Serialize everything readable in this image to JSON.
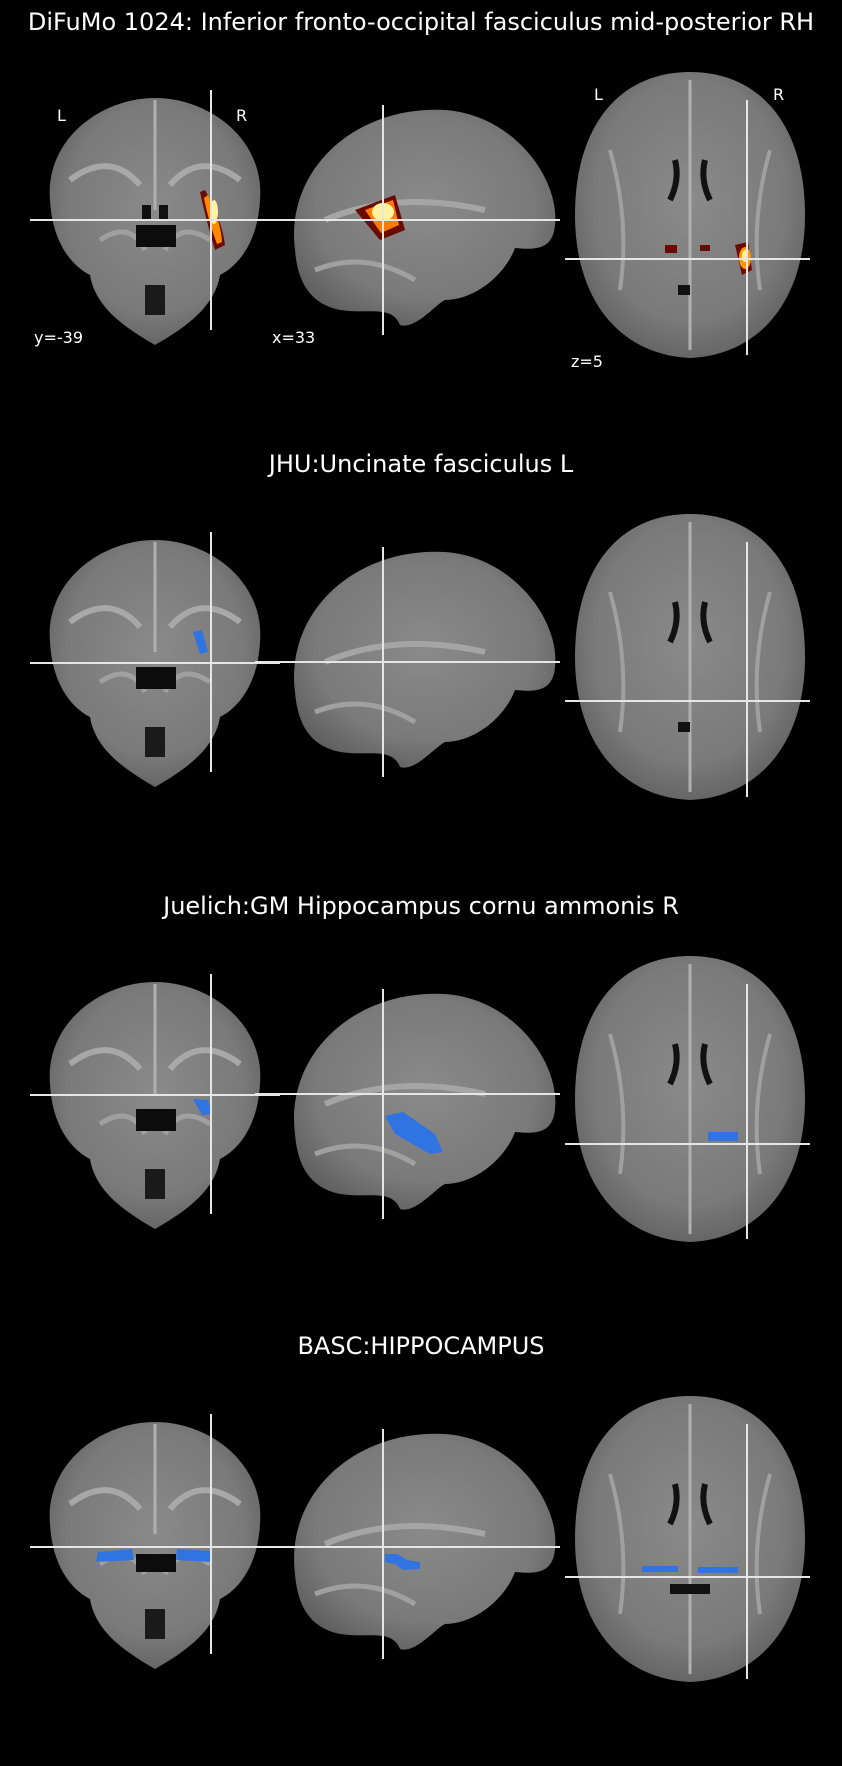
{
  "panels": [
    {
      "title": "DiFuMo 1024: Inferior fronto-occipital fasciculus mid-posterior RH",
      "overlay": "hot",
      "orientation": {
        "left": "L",
        "right": "R"
      },
      "coords": {
        "coronal": "y=-39",
        "sagittal": "x=33",
        "axial": "z=5"
      }
    },
    {
      "title": "JHU:Uncinate fasciculus L",
      "overlay": "blue"
    },
    {
      "title": "Juelich:GM Hippocampus cornu ammonis R",
      "overlay": "blue"
    },
    {
      "title": "BASC:HIPPOCAMPUS",
      "overlay": "blue"
    }
  ],
  "colors": {
    "background": "#000000",
    "blue_overlay": "#2f74e0",
    "hot_outer": "#9e1a00",
    "hot_mid": "#ff6a00",
    "hot_core": "#ffe98a",
    "crosshair": "#e6e6e6"
  }
}
